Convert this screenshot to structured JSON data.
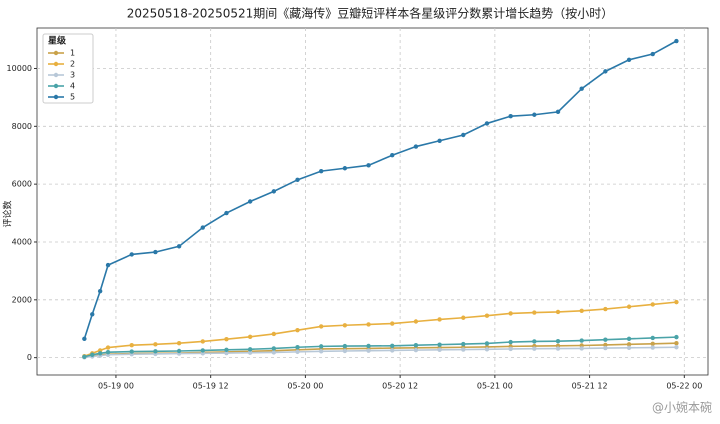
{
  "chart_data": {
    "type": "line",
    "title": "20250518-20250521期间《藏海传》豆瓣短评样本各星级评分数累计增长趋势（按小时）",
    "y_label": "评论数",
    "legend_title": "星级",
    "legend_loc": "upper left",
    "grid": true,
    "watermark": "@小婉本碗",
    "x": [
      "05-18 20",
      "05-18 21",
      "05-18 22",
      "05-18 23",
      "05-19 02",
      "05-19 05",
      "05-19 08",
      "05-19 11",
      "05-19 14",
      "05-19 17",
      "05-19 20",
      "05-19 23",
      "05-20 02",
      "05-20 05",
      "05-20 08",
      "05-20 11",
      "05-20 14",
      "05-20 17",
      "05-20 20",
      "05-20 23",
      "05-21 02",
      "05-21 05",
      "05-21 08",
      "05-21 11",
      "05-21 14",
      "05-21 17",
      "05-21 20",
      "05-21 23"
    ],
    "xlim": [
      "05-18 14",
      "05-22 03"
    ],
    "xticks": [
      "05-19 00",
      "05-19 12",
      "05-20 00",
      "05-20 12",
      "05-21 00",
      "05-21 12",
      "05-22 00"
    ],
    "ylim": [
      -600,
      11400
    ],
    "yticks": [
      0,
      2000,
      4000,
      6000,
      8000,
      10000
    ],
    "series": [
      {
        "name": "1",
        "color": "#c9a24a",
        "values": [
          20,
          60,
          90,
          120,
          140,
          150,
          160,
          180,
          200,
          220,
          240,
          270,
          300,
          310,
          320,
          330,
          340,
          350,
          360,
          370,
          390,
          400,
          410,
          420,
          440,
          460,
          480,
          500
        ]
      },
      {
        "name": "2",
        "color": "#e8b040",
        "values": [
          50,
          150,
          250,
          350,
          430,
          460,
          500,
          560,
          640,
          720,
          820,
          950,
          1080,
          1120,
          1150,
          1180,
          1250,
          1320,
          1380,
          1450,
          1530,
          1560,
          1580,
          1620,
          1680,
          1760,
          1840,
          1920
        ]
      },
      {
        "name": "3",
        "color": "#b8c8d8",
        "values": [
          10,
          40,
          70,
          100,
          120,
          130,
          140,
          150,
          160,
          170,
          180,
          200,
          220,
          230,
          240,
          250,
          260,
          270,
          280,
          290,
          300,
          310,
          315,
          320,
          330,
          340,
          350,
          360
        ]
      },
      {
        "name": "4",
        "color": "#4aa3a8",
        "values": [
          30,
          100,
          150,
          190,
          210,
          220,
          230,
          250,
          270,
          290,
          320,
          360,
          390,
          400,
          405,
          410,
          430,
          450,
          470,
          490,
          540,
          560,
          570,
          590,
          620,
          650,
          680,
          710
        ]
      },
      {
        "name": "5",
        "color": "#2a78a8",
        "values": [
          650,
          1500,
          2300,
          3200,
          3570,
          3650,
          3850,
          4500,
          5000,
          5400,
          5750,
          6150,
          6450,
          6550,
          6650,
          7000,
          7300,
          7500,
          7700,
          8100,
          8350,
          8400,
          8500,
          9300,
          9900,
          10300,
          10500,
          10950
        ]
      }
    ]
  }
}
